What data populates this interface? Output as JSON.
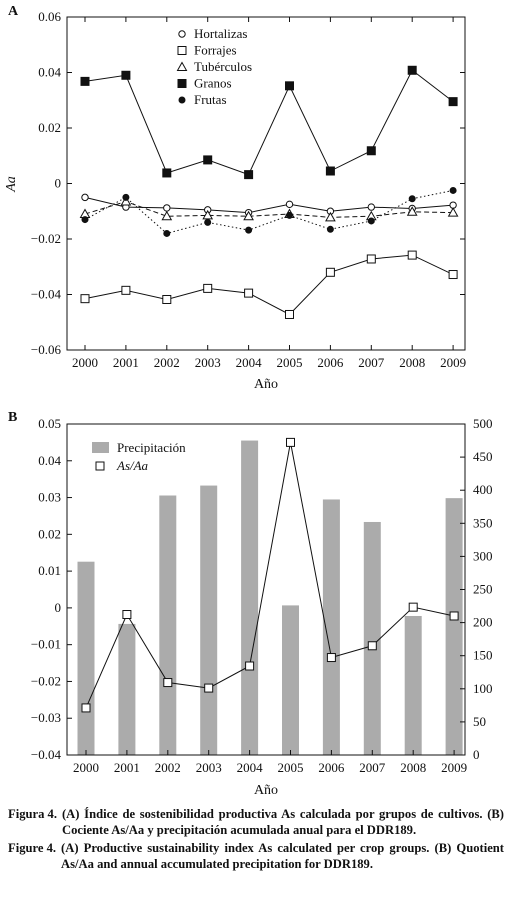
{
  "chart_data": [
    {
      "type": "line",
      "panel_label": "A",
      "title": "",
      "xlabel": "Año",
      "ylabel": "Aa",
      "x": [
        2000,
        2001,
        2002,
        2003,
        2004,
        2005,
        2006,
        2007,
        2008,
        2009
      ],
      "ylim": [
        -0.06,
        0.06
      ],
      "yticks": [
        "0.06",
        "0.04",
        "0.02",
        "0",
        "−0.02",
        "−0.04",
        "−0.06"
      ],
      "ytick_values": [
        0.06,
        0.04,
        0.02,
        0,
        -0.02,
        -0.04,
        -0.06
      ],
      "grid": false,
      "legend_position": "top-center",
      "series": [
        {
          "name": "Hortalizas",
          "marker": "circle-open",
          "line": "solid",
          "values": [
            -0.005,
            -0.0085,
            -0.0088,
            -0.0095,
            -0.0105,
            -0.0075,
            -0.01,
            -0.0085,
            -0.009,
            -0.0078
          ]
        },
        {
          "name": "Forrajes",
          "marker": "square-open",
          "line": "solid",
          "values": [
            -0.0415,
            -0.0385,
            -0.0418,
            -0.0378,
            -0.0395,
            -0.0472,
            -0.032,
            -0.0272,
            -0.0258,
            -0.0328
          ]
        },
        {
          "name": "Tubérculos",
          "marker": "triangle-open",
          "line": "dashed",
          "values": [
            -0.011,
            -0.0065,
            -0.0118,
            -0.0115,
            -0.0118,
            -0.011,
            -0.0122,
            -0.0118,
            -0.0102,
            -0.0105
          ]
        },
        {
          "name": "Granos",
          "marker": "square-filled",
          "line": "solid",
          "values": [
            0.0368,
            0.039,
            0.0038,
            0.0085,
            0.0032,
            0.0352,
            0.0045,
            0.0118,
            0.0408,
            0.0295
          ]
        },
        {
          "name": "Frutas",
          "marker": "circle-filled",
          "line": "dotted",
          "values": [
            -0.013,
            -0.005,
            -0.018,
            -0.014,
            -0.0168,
            -0.0115,
            -0.0165,
            -0.0135,
            -0.0055,
            -0.0025
          ]
        }
      ]
    },
    {
      "type": "bar+line",
      "panel_label": "B",
      "title": "",
      "xlabel": "Año",
      "x": [
        2000,
        2001,
        2002,
        2003,
        2004,
        2005,
        2006,
        2007,
        2008,
        2009
      ],
      "ylim_left": [
        -0.04,
        0.05
      ],
      "yticks_left": [
        "0.05",
        "0.04",
        "0.03",
        "0.02",
        "0.01",
        "0",
        "−0.01",
        "−0.02",
        "−0.03",
        "−0.04"
      ],
      "ytick_values_left": [
        0.05,
        0.04,
        0.03,
        0.02,
        0.01,
        0,
        -0.01,
        -0.02,
        -0.03,
        -0.04
      ],
      "ylim_right": [
        0,
        500
      ],
      "yticks_right": [
        "500",
        "450",
        "400",
        "350",
        "300",
        "250",
        "200",
        "150",
        "100",
        "50",
        "0"
      ],
      "ytick_values_right": [
        500,
        450,
        400,
        350,
        300,
        250,
        200,
        150,
        100,
        50,
        0
      ],
      "grid": false,
      "legend_position": "top-left",
      "series": [
        {
          "name": "Precipitación",
          "kind": "bar",
          "axis": "right",
          "color": "#ababab",
          "values": [
            292,
            198,
            392,
            407,
            475,
            226,
            386,
            352,
            210,
            388
          ]
        },
        {
          "name": "As/Aa",
          "kind": "line",
          "axis": "left",
          "marker": "square-open",
          "values": [
            -0.0272,
            -0.0018,
            -0.0203,
            -0.0218,
            -0.0158,
            0.045,
            -0.0135,
            -0.0103,
            0.0002,
            -0.0022
          ]
        }
      ]
    }
  ],
  "captions": [
    {
      "label": "Figura 4.",
      "text": "(A) Índice de sostenibilidad productiva As calculada por grupos de cultivos. (B) Cociente As/Aa y precipitación acumulada anual para el DDR189."
    },
    {
      "label": "Figure 4.",
      "text": "(A) Productive sustainability index As calculated per crop groups. (B) Quotient As/Aa and annual accumulated precipitation for DDR189."
    }
  ]
}
